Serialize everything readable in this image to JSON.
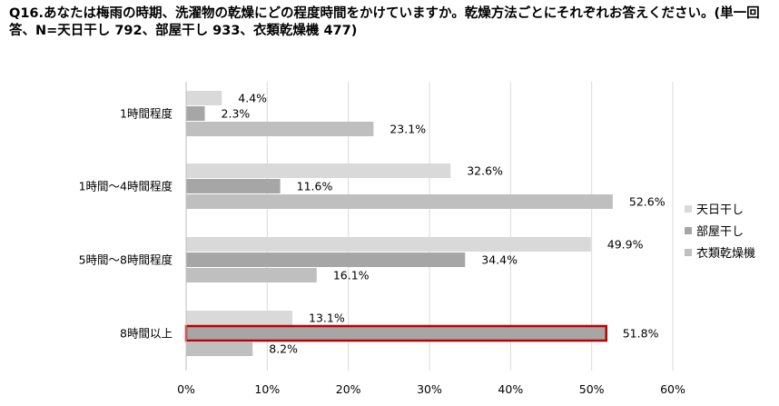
{
  "chart_data": {
    "type": "bar",
    "orientation": "horizontal",
    "title": "Q16.あなたは梅雨の時期、洗濯物の乾燥にどの程度時間をかけていますか。乾燥方法ごとにそれぞれお答えください。(単一回答、N=天日干し 792、部屋干し 933、衣類乾燥機 477)",
    "categories": [
      "1時間程度",
      "1時間～4時間程度",
      "5時間～8時間程度",
      "8時間以上"
    ],
    "series": [
      {
        "name": "天日干し",
        "color": "#d9d9d9",
        "values": [
          4.4,
          32.6,
          49.9,
          13.1
        ],
        "labels": [
          "4.4%",
          "32.6%",
          "49.9%",
          "13.1%"
        ]
      },
      {
        "name": "部屋干し",
        "color": "#a6a6a6",
        "values": [
          2.3,
          11.6,
          34.4,
          51.8
        ],
        "labels": [
          "2.3%",
          "11.6%",
          "34.4%",
          "51.8%"
        ]
      },
      {
        "name": "衣類乾燥機",
        "color": "#bfbfbf",
        "values": [
          23.1,
          52.6,
          16.1,
          8.2
        ],
        "labels": [
          "23.1%",
          "52.6%",
          "16.1%",
          "8.2%"
        ]
      }
    ],
    "xlim": [
      0,
      60
    ],
    "x_ticks": [
      "0%",
      "10%",
      "20%",
      "30%",
      "40%",
      "50%",
      "60%"
    ],
    "grid": true,
    "legend": "right",
    "highlight": {
      "series_index": 1,
      "category_index": 3,
      "color": "#c00000"
    }
  }
}
